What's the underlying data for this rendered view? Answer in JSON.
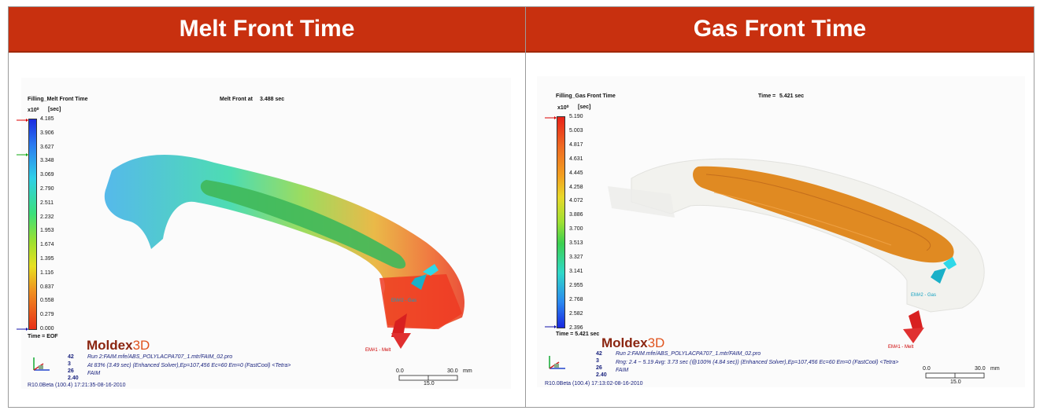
{
  "panels": [
    {
      "header": "Melt Front Time",
      "result_name": "Filling_Melt Front Time",
      "time_label": "Melt Front at",
      "time_value": "3.488 sec",
      "scale_exp": "x10⁰",
      "unit": "[sec]",
      "legend_ticks": [
        "4.185",
        "3.906",
        "3.627",
        "3.348",
        "3.069",
        "2.790",
        "2.511",
        "2.232",
        "1.953",
        "1.674",
        "1.395",
        "1.116",
        "0.837",
        "0.558",
        "0.279",
        "0.000"
      ],
      "bottom_label": "Time = EOF",
      "logo_a": "Moldex",
      "logo_b": "3D",
      "info_nums": [
        "42",
        "3",
        "26",
        "2.40"
      ],
      "run_line": "Run 2:FAIM.mfe/ABS_POLYLACPA707_1.mtr/FAIM_02.pro",
      "detail_line": "At 83% (3.49 sec) (Enhanced Solver),Ep=107,456 Ec=60 Em=0 (FastCool) <Tetra>",
      "name_line": "FAIM",
      "version": "R10.0Beta (100.4) 17:21:35-08-16-2010",
      "scale_left": "0.0",
      "scale_right": "30.0",
      "scale_unit": "mm",
      "scale_mid": "15.0",
      "em_gas": "EM#2 - Gas",
      "em_melt": "EM#1 - Melt"
    },
    {
      "header": "Gas Front Time",
      "result_name": "Filling_Gas Front Time",
      "time_label": "Time =",
      "time_value": "5.421 sec",
      "scale_exp": "x10⁰",
      "unit": "[sec]",
      "legend_ticks": [
        "5.190",
        "5.003",
        "4.817",
        "4.631",
        "4.445",
        "4.258",
        "4.072",
        "3.886",
        "3.700",
        "3.513",
        "3.327",
        "3.141",
        "2.955",
        "2.768",
        "2.582",
        "2.396"
      ],
      "bottom_label": "Time = 5.421 sec",
      "logo_a": "Moldex",
      "logo_b": "3D",
      "info_nums": [
        "42",
        "3",
        "26",
        "2.40"
      ],
      "run_line": "Run 2:FAIM.mfe/ABS_POLYLACPA707_1.mtr/FAIM_02.pro",
      "detail_line": "Rng: 2.4 ~ 5.19  Avg: 3.73 sec  (@100% (4.84 sec)) (Enhanced Solver),Ep=107,456 Ec=60 Em=0 (FastCool) <Tetra>",
      "name_line": "FAIM",
      "version": "R10.0Beta (100.4) 17:13:02-08-16-2010",
      "scale_left": "0.0",
      "scale_right": "30.0",
      "scale_unit": "mm",
      "scale_mid": "15.0",
      "em_gas": "EM#2 - Gas",
      "em_melt": "EM#1 - Melt"
    }
  ]
}
